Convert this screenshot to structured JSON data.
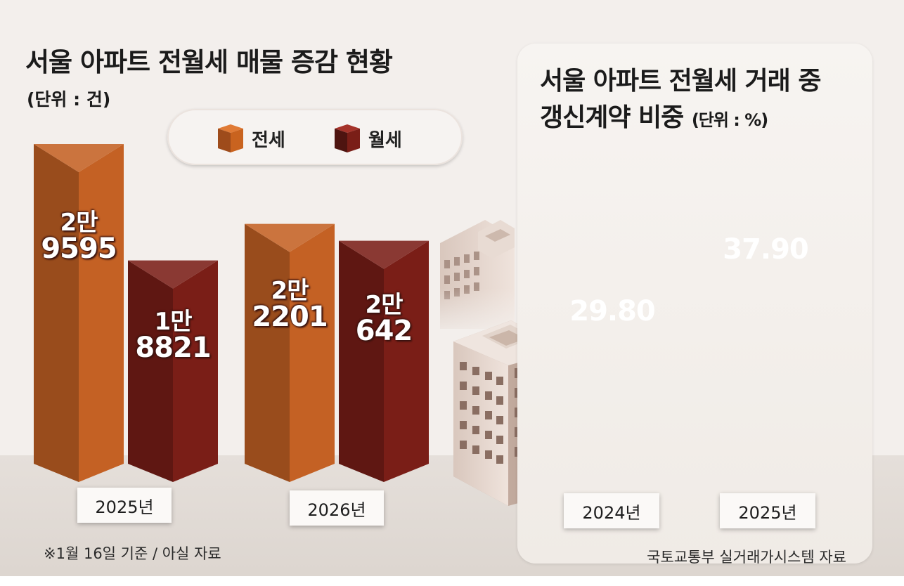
{
  "chart_data": [
    {
      "type": "bar",
      "title": "서울 아파트 전월세 매물 증감 현황",
      "unit": "(단위 : 건)",
      "categories": [
        "2025년",
        "2026년"
      ],
      "series": [
        {
          "name": "전세",
          "values": [
            29595,
            22201
          ],
          "labels_top": [
            "2만",
            "2만"
          ],
          "labels_num": [
            "9595",
            "2201"
          ],
          "color": "#c46124"
        },
        {
          "name": "월세",
          "values": [
            18821,
            20642
          ],
          "labels_top": [
            "1만",
            "2만"
          ],
          "labels_num": [
            "8821",
            "642"
          ],
          "color": "#7a1e17"
        }
      ],
      "legend": "top-center",
      "footnote": "※1월 16일 기준 / 아실 자료"
    },
    {
      "type": "bar",
      "style": "cylinder",
      "title_line1": "서울 아파트 전월세 거래 중",
      "title_line2": "갱신계약 비중",
      "unit": "(단위 : %)",
      "categories": [
        "2024년",
        "2025년"
      ],
      "values": [
        29.8,
        37.9
      ],
      "value_labels": [
        "29.80",
        "37.90"
      ],
      "colors": [
        "#c4581f",
        "#6e1b16"
      ],
      "source": "국토교통부 실거래가시스템 자료"
    }
  ]
}
